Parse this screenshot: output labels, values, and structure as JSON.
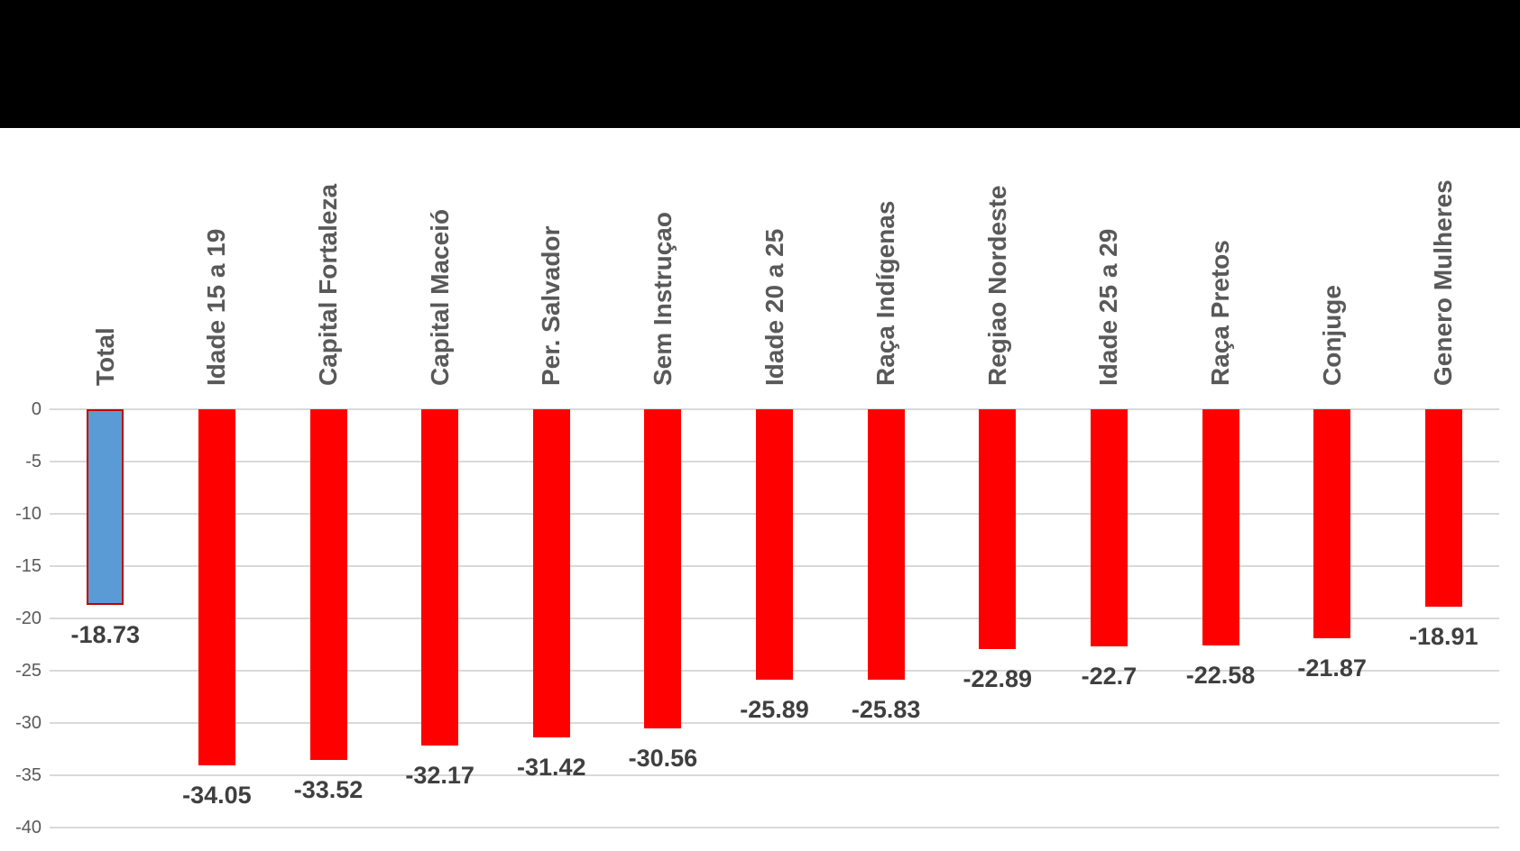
{
  "chart_data": {
    "type": "bar",
    "title": "",
    "xlabel": "",
    "ylabel": "",
    "legend": "none",
    "grid": true,
    "ylim": [
      -40,
      0
    ],
    "yticks": [
      0,
      -5,
      -10,
      -15,
      -20,
      -25,
      -30,
      -35,
      -40
    ],
    "ytick_labels": [
      "0",
      "-5",
      "-10",
      "-15",
      "-20",
      "-25",
      "-30",
      "-35",
      "-40"
    ],
    "categories": [
      "Total",
      "Idade 15 a 19",
      "Capital Fortaleza",
      "Capital Maceió",
      "Per. Salvador",
      "Sem Instruçao",
      "Idade 20 a 25",
      "Raça Indígenas",
      "Regiao Nordeste",
      "Idade 25 a 29",
      "Raça Pretos",
      "Conjuge",
      "Genero Mulheres"
    ],
    "values": [
      -18.73,
      -34.05,
      -33.52,
      -32.17,
      -31.42,
      -30.56,
      -25.89,
      -25.83,
      -22.89,
      -22.7,
      -22.58,
      -21.87,
      -18.91
    ],
    "data_labels": [
      "-18.73",
      "-34.05",
      "-33.52",
      "-32.17",
      "-31.42",
      "-30.56",
      "-25.89",
      "-25.83",
      "-22.89",
      "-22.7",
      "-22.58",
      "-21.87",
      "-18.91"
    ],
    "highlight_category": "Total",
    "colors": {
      "total_bar_fill": "#5B9BD5",
      "total_bar_border": "#C00000",
      "bar_fill": "#FF0000",
      "gridline": "#D9D9D9",
      "ytick_label": "#595959",
      "category_label": "#595959",
      "data_label": "#3F3F3F",
      "header_bar": "#000000",
      "background": "#FFFFFF"
    }
  }
}
